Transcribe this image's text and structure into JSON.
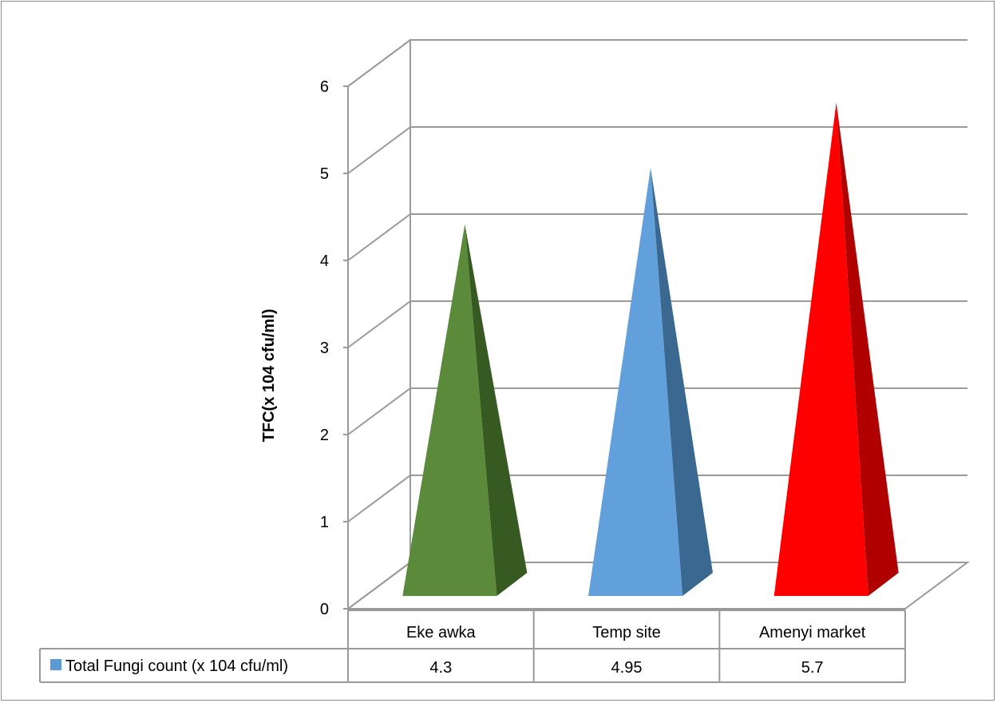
{
  "chart_data": {
    "type": "bar",
    "shape": "pyramid-3d",
    "title": "",
    "xlabel": "",
    "ylabel": "TFC(x 104 cfu/ml)",
    "categories": [
      "Eke awka",
      "Temp site",
      "Amenyi market"
    ],
    "series": [
      {
        "name": "Total Fungi count (x 104 cfu/ml)",
        "values": [
          4.3,
          4.95,
          5.7
        ],
        "value_labels": [
          "4.3",
          "4.95",
          "5.7"
        ],
        "legend_color": "#5b9bd5"
      }
    ],
    "bar_colors": [
      {
        "front": "#5a8a3a",
        "side": "#375a22"
      },
      {
        "front": "#62a0dc",
        "side": "#3a6890"
      },
      {
        "front": "#ff0000",
        "side": "#b00000"
      }
    ],
    "ylim": [
      0,
      6
    ],
    "yticks": [
      0,
      1,
      2,
      3,
      4,
      5,
      6
    ],
    "ytick_labels": [
      "0",
      "1",
      "2",
      "3",
      "4",
      "5",
      "6"
    ],
    "grid": true,
    "legend": "data-table"
  }
}
